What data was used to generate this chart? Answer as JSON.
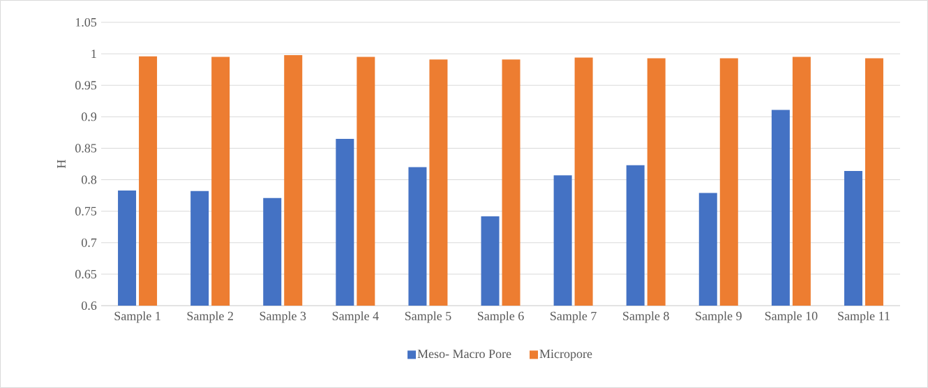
{
  "chart_data": {
    "type": "bar",
    "ylabel": "H",
    "categories": [
      "Sample 1",
      "Sample 2",
      "Sample 3",
      "Sample 4",
      "Sample 5",
      "Sample 6",
      "Sample 7",
      "Sample 8",
      "Sample 9",
      "Sample 10",
      "Sample 11"
    ],
    "series": [
      {
        "name": "Meso- Macro Pore",
        "color": "#4472c4",
        "values": [
          0.783,
          0.782,
          0.771,
          0.865,
          0.82,
          0.742,
          0.807,
          0.823,
          0.779,
          0.911,
          0.814
        ]
      },
      {
        "name": "Micropore",
        "color": "#ed7d31",
        "values": [
          0.996,
          0.995,
          0.998,
          0.995,
          0.991,
          0.991,
          0.994,
          0.993,
          0.993,
          0.995,
          0.993
        ]
      }
    ],
    "ylim": [
      0.6,
      1.05
    ],
    "yticks": [
      0.6,
      0.65,
      0.7,
      0.75,
      0.8,
      0.85,
      0.9,
      0.95,
      1,
      1.05
    ],
    "grid": "y",
    "legend": "bottom"
  }
}
